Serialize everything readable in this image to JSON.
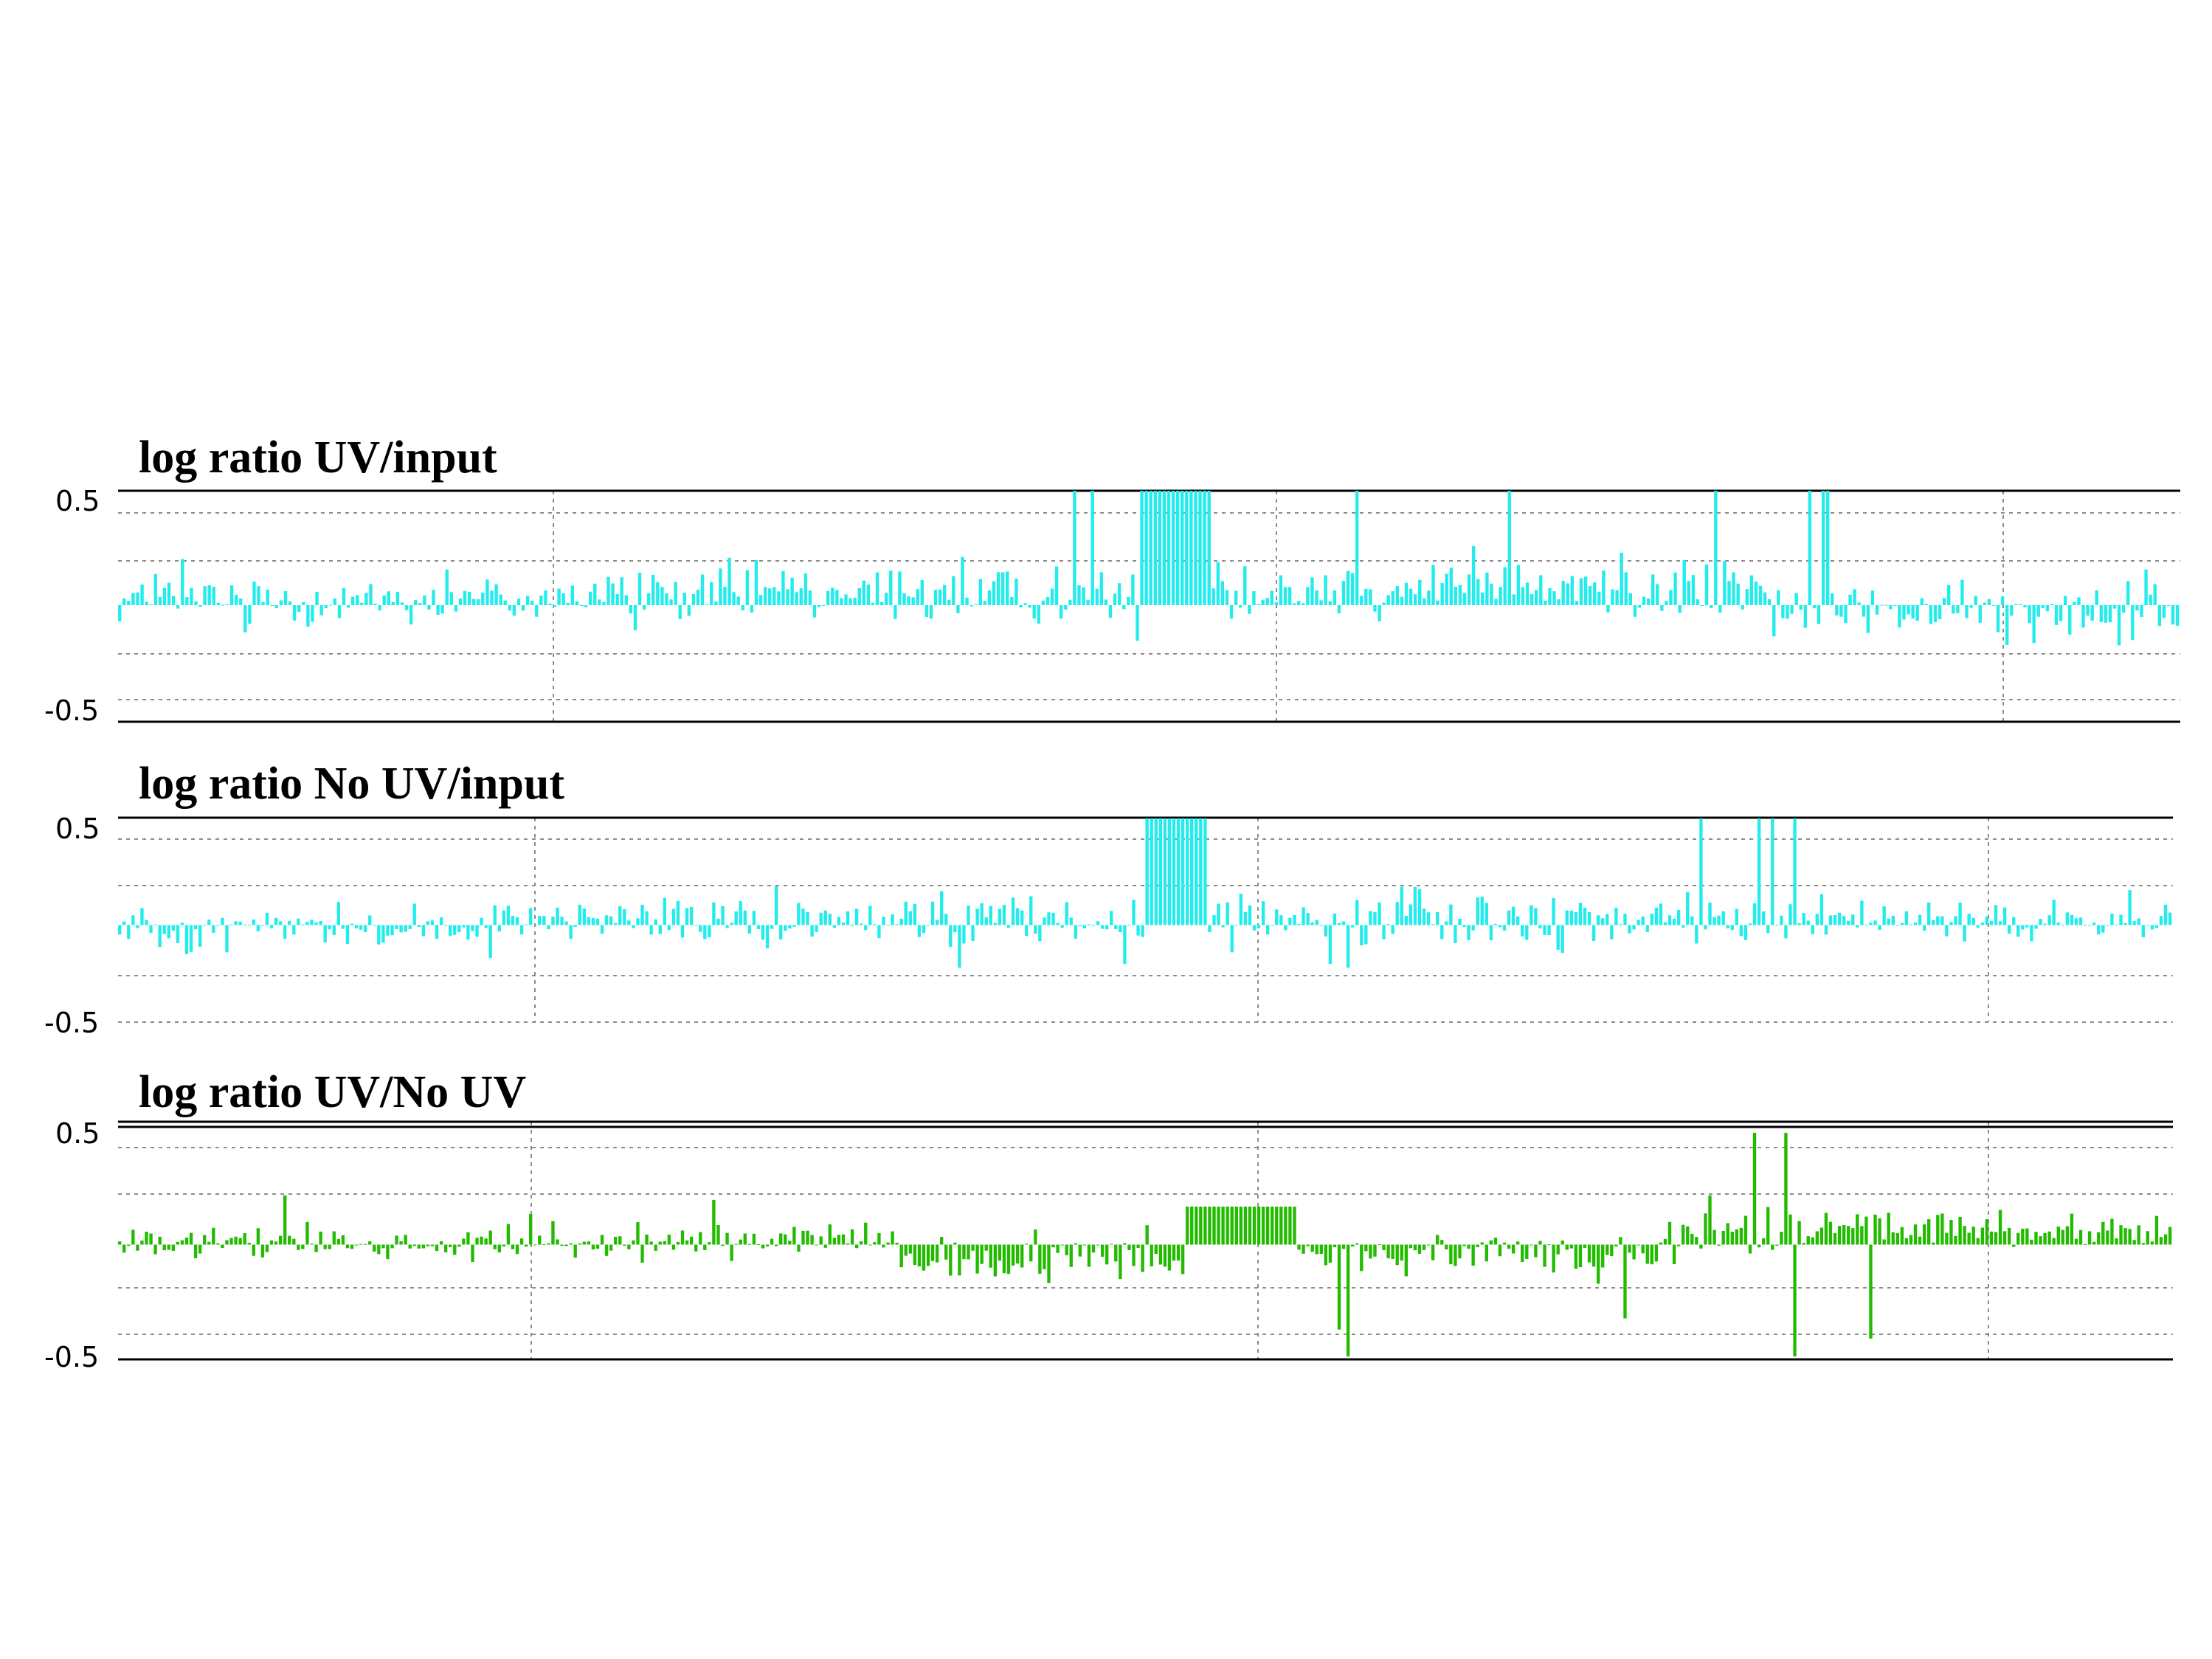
{
  "chart_data": [
    {
      "type": "bar",
      "title": "log ratio UV/input",
      "ylim": [
        -0.5,
        0.5
      ],
      "y_ticks": [
        "0.5",
        "-0.5"
      ],
      "grid": true,
      "color": "#22ECEC",
      "n_bins": 460,
      "values_description_in_data": true,
      "segments": [
        {
          "from": 0,
          "to": 0.2,
          "level": 0.03,
          "spread": 0.11
        },
        {
          "from": 0.2,
          "to": 0.5,
          "level": 0.05,
          "spread": 0.12
        },
        {
          "from": 0.5,
          "to": 0.53,
          "level": 0.55,
          "spread": 0.0
        },
        {
          "from": 0.53,
          "to": 0.8,
          "level": 0.08,
          "spread": 0.13
        },
        {
          "from": 0.8,
          "to": 1.0,
          "level": -0.03,
          "spread": 0.11
        }
      ],
      "peaks": [
        {
          "at": 0.465,
          "value": 0.55
        },
        {
          "at": 0.472,
          "value": 0.55
        },
        {
          "at": 0.602,
          "value": 0.55
        },
        {
          "at": 0.676,
          "value": 0.55
        },
        {
          "at": 0.776,
          "value": 0.55
        },
        {
          "at": 0.821,
          "value": 0.55
        },
        {
          "at": 0.828,
          "value": 0.55
        },
        {
          "at": 0.83,
          "value": 0.55
        },
        {
          "at": 0.498,
          "value": 0.55
        },
        {
          "at": 0.497,
          "value": 0.55
        },
        {
          "at": 0.494,
          "value": 0.55
        },
        {
          "at": 0.03,
          "value": 0.22
        },
        {
          "at": 0.16,
          "value": 0.17
        },
        {
          "at": 0.41,
          "value": 0.23
        },
        {
          "at": 0.73,
          "value": 0.25
        },
        {
          "at": 0.984,
          "value": 0.17
        },
        {
          "at": 0.498,
          "value": 0.55
        },
        {
          "at": 0.501,
          "value": 0.55
        },
        {
          "at": 0.99,
          "value": 0.1
        }
      ],
      "troughs": [
        {
          "at": 0.495,
          "value": -0.17
        },
        {
          "at": 0.25,
          "value": -0.12
        },
        {
          "at": 0.917,
          "value": -0.19
        },
        {
          "at": 0.93,
          "value": -0.18
        },
        {
          "at": 0.06,
          "value": -0.13
        }
      ]
    },
    {
      "type": "bar",
      "title": "log ratio  No UV/input",
      "ylim": [
        -0.5,
        0.5
      ],
      "y_ticks": [
        "0.5",
        "-0.5"
      ],
      "grid": true,
      "color": "#22ECEC",
      "n_bins": 460,
      "segments": [
        {
          "from": 0,
          "to": 0.2,
          "level": -0.01,
          "spread": 0.1
        },
        {
          "from": 0.2,
          "to": 0.5,
          "level": 0.02,
          "spread": 0.12
        },
        {
          "from": 0.5,
          "to": 0.53,
          "level": 0.55,
          "spread": 0.0
        },
        {
          "from": 0.53,
          "to": 0.8,
          "level": 0.03,
          "spread": 0.13
        },
        {
          "from": 0.8,
          "to": 1.0,
          "level": 0.02,
          "spread": 0.1
        }
      ],
      "peaks": [
        {
          "at": 0.503,
          "value": 0.55
        },
        {
          "at": 0.771,
          "value": 0.55
        },
        {
          "at": 0.799,
          "value": 0.55
        },
        {
          "at": 0.806,
          "value": 0.55
        },
        {
          "at": 0.817,
          "value": 0.55
        },
        {
          "at": 0.32,
          "value": 0.2
        },
        {
          "at": 0.98,
          "value": 0.18
        }
      ],
      "troughs": [
        {
          "at": 0.41,
          "value": -0.22
        },
        {
          "at": 0.49,
          "value": -0.2
        },
        {
          "at": 0.6,
          "value": -0.22
        },
        {
          "at": 0.59,
          "value": -0.2
        },
        {
          "at": 0.18,
          "value": -0.17
        },
        {
          "at": 0.033,
          "value": -0.15
        }
      ]
    },
    {
      "type": "bar",
      "title": "log ratio UV/No UV",
      "ylim": [
        -0.5,
        0.5
      ],
      "y_ticks": [
        "0.5",
        "-0.5"
      ],
      "grid": true,
      "color": "#22BB00",
      "n_bins": 460,
      "segments": [
        {
          "from": 0,
          "to": 0.2,
          "level": 0.0,
          "spread": 0.07
        },
        {
          "from": 0.2,
          "to": 0.38,
          "level": 0.02,
          "spread": 0.07
        },
        {
          "from": 0.38,
          "to": 0.52,
          "level": -0.07,
          "spread": 0.08
        },
        {
          "from": 0.52,
          "to": 0.575,
          "level": 0.17,
          "spread": 0.0
        },
        {
          "from": 0.575,
          "to": 0.76,
          "level": -0.05,
          "spread": 0.09
        },
        {
          "from": 0.76,
          "to": 0.9,
          "level": 0.07,
          "spread": 0.09
        },
        {
          "from": 0.9,
          "to": 1.0,
          "level": 0.06,
          "spread": 0.07
        }
      ],
      "peaks": [
        {
          "at": 0.798,
          "value": 0.5
        },
        {
          "at": 0.813,
          "value": 0.5
        },
        {
          "at": 0.775,
          "value": 0.22
        },
        {
          "at": 0.08,
          "value": 0.22
        },
        {
          "at": 0.29,
          "value": 0.2
        }
      ],
      "troughs": [
        {
          "at": 0.6,
          "value": -0.5
        },
        {
          "at": 0.818,
          "value": -0.5
        },
        {
          "at": 0.853,
          "value": -0.42
        },
        {
          "at": 0.595,
          "value": -0.38
        },
        {
          "at": 0.735,
          "value": -0.33
        }
      ]
    }
  ],
  "labels": {
    "panel1_title": "log ratio UV/input",
    "panel2_title": "log ratio  No UV/input",
    "panel3_title": "log ratio UV/No UV",
    "tick_top": "0.5",
    "tick_bottom": "-0.5"
  }
}
